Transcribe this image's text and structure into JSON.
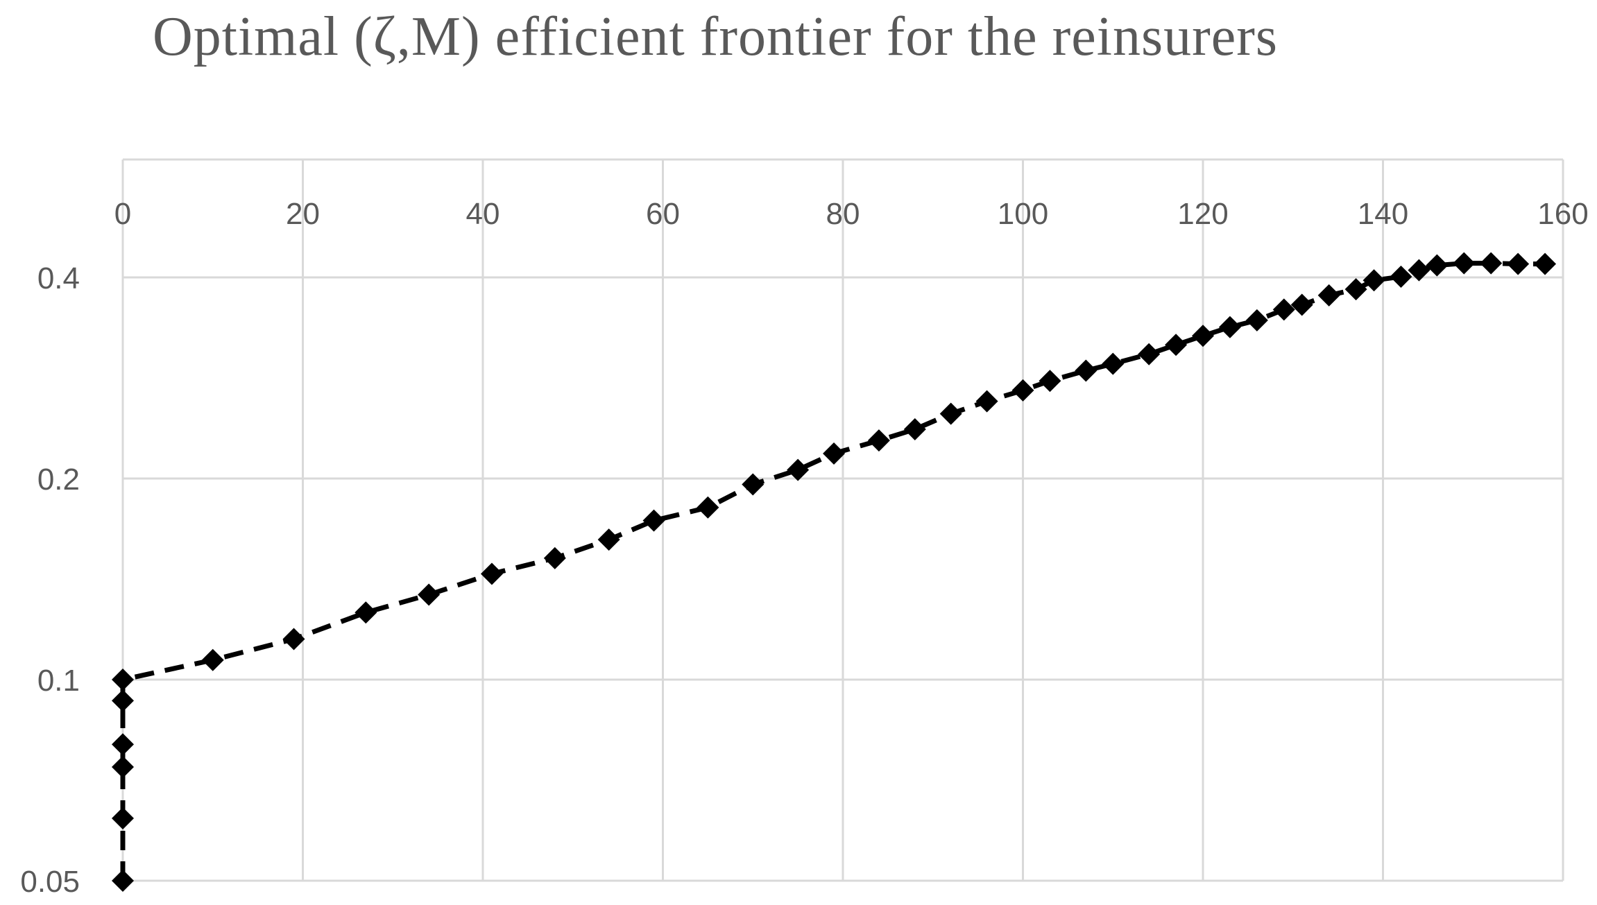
{
  "chart_data": {
    "type": "scatter",
    "title": "Optimal (ζ,M) efficient frontier for the reinsurers",
    "xlabel": "",
    "ylabel": "",
    "x_axis": {
      "position": "top",
      "range": [
        0,
        160
      ],
      "ticks": [
        0,
        20,
        40,
        60,
        80,
        100,
        120,
        140,
        160
      ]
    },
    "y_axis": {
      "scale": "log",
      "range": [
        0.05,
        0.5
      ],
      "ticks": [
        0.05,
        0.1,
        0.2,
        0.4
      ],
      "tick_labels": [
        "0.05",
        "0.1",
        "0.2",
        "0.4"
      ]
    },
    "grid": true,
    "series": [
      {
        "line_style": "dashed",
        "marker": "diamond",
        "color": "#000000",
        "points": [
          [
            0,
            0.05
          ],
          [
            0,
            0.062
          ],
          [
            0,
            0.074
          ],
          [
            0,
            0.08
          ],
          [
            0,
            0.093
          ],
          [
            0,
            0.1
          ],
          [
            10,
            0.107
          ],
          [
            19,
            0.115
          ],
          [
            27,
            0.126
          ],
          [
            34,
            0.134
          ],
          [
            41,
            0.144
          ],
          [
            48,
            0.152
          ],
          [
            54,
            0.162
          ],
          [
            59,
            0.173
          ],
          [
            65,
            0.181
          ],
          [
            70,
            0.196
          ],
          [
            75,
            0.206
          ],
          [
            79,
            0.218
          ],
          [
            84,
            0.228
          ],
          [
            88,
            0.237
          ],
          [
            92,
            0.25
          ],
          [
            96,
            0.261
          ],
          [
            100,
            0.271
          ],
          [
            103,
            0.28
          ],
          [
            107,
            0.29
          ],
          [
            110,
            0.297
          ],
          [
            114,
            0.307
          ],
          [
            117,
            0.317
          ],
          [
            120,
            0.327
          ],
          [
            123,
            0.337
          ],
          [
            126,
            0.345
          ],
          [
            129,
            0.358
          ],
          [
            131,
            0.364
          ],
          [
            134,
            0.376
          ],
          [
            137,
            0.384
          ],
          [
            139,
            0.396
          ],
          [
            142,
            0.401
          ],
          [
            144,
            0.41
          ],
          [
            146,
            0.417
          ],
          [
            149,
            0.42
          ],
          [
            152,
            0.42
          ],
          [
            155,
            0.419
          ],
          [
            158,
            0.419
          ]
        ]
      }
    ]
  }
}
